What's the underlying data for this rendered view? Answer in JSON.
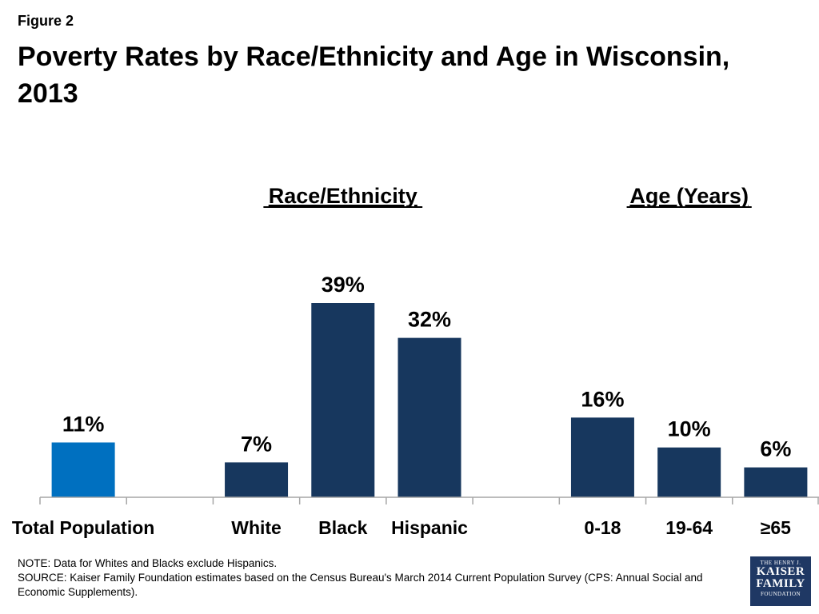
{
  "figure_label": "Figure 2",
  "title": "Poverty Rates by Race/Ethnicity and Age in Wisconsin, 2013",
  "group_headers": [
    "Race/Ethnicity",
    "Age (Years)"
  ],
  "chart_data": {
    "type": "bar",
    "categories": [
      "Total Population",
      "",
      "White",
      "Black",
      "Hispanic",
      "",
      "0-18",
      "19-64",
      "≥65"
    ],
    "values": [
      11,
      null,
      7,
      39,
      32,
      null,
      16,
      10,
      6
    ],
    "data_labels": [
      "11%",
      "",
      "7%",
      "39%",
      "32%",
      "",
      "16%",
      "10%",
      "6%"
    ],
    "colors": [
      "#0070c0",
      null,
      "#17375e",
      "#17375e",
      "#17375e",
      null,
      "#17375e",
      "#17375e",
      "#17375e"
    ],
    "ylim": [
      0,
      45
    ],
    "grid": false,
    "legend": "none"
  },
  "notes": {
    "note": "NOTE: Data for Whites and Blacks exclude Hispanics.",
    "source": "SOURCE: Kaiser Family Foundation estimates based on the Census Bureau's March 2014 Current Population Survey (CPS: Annual Social and Economic Supplements)."
  },
  "logo": {
    "line1": "THE HENRY J.",
    "line2": "KAISER",
    "line3": "FAMILY",
    "line4": "FOUNDATION"
  }
}
